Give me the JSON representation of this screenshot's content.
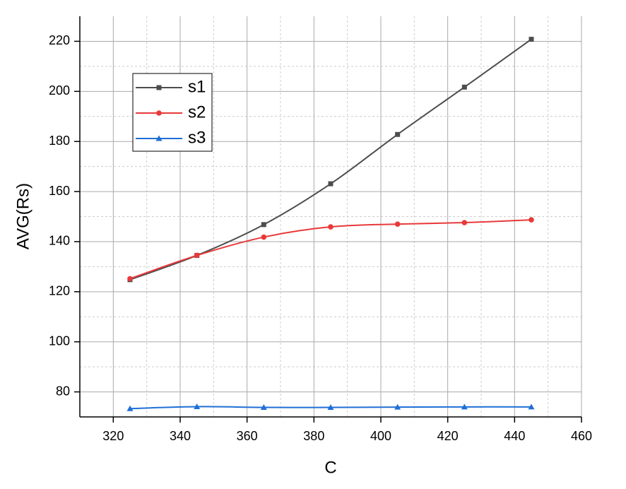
{
  "chart_data": {
    "type": "line",
    "x_label": "C",
    "y_label": "AVG(Rs)",
    "x": [
      325,
      345,
      365,
      385,
      405,
      425,
      445
    ],
    "series": [
      {
        "name": "s1",
        "color": "#4d4d4d",
        "marker": "square",
        "values": [
          124.8,
          134.5,
          146.8,
          163.1,
          182.8,
          201.7,
          220.8
        ]
      },
      {
        "name": "s2",
        "color": "#e8393a",
        "marker": "circle",
        "values": [
          125.2,
          134.5,
          141.8,
          145.9,
          147,
          147.6,
          148.7
        ]
      },
      {
        "name": "s3",
        "color": "#1f6fd6",
        "marker": "triangle",
        "values": [
          73.3,
          74.1,
          73.8,
          73.8,
          73.9,
          74,
          74
        ]
      }
    ],
    "xlim": [
      310,
      460
    ],
    "xticks": [
      320,
      340,
      360,
      380,
      400,
      420,
      440,
      460
    ],
    "ylim": [
      70,
      230
    ],
    "yticks": [
      80,
      100,
      120,
      140,
      160,
      180,
      200,
      220
    ],
    "grid": true,
    "minor_grid": true,
    "smooth": true,
    "legend": "upper left"
  }
}
